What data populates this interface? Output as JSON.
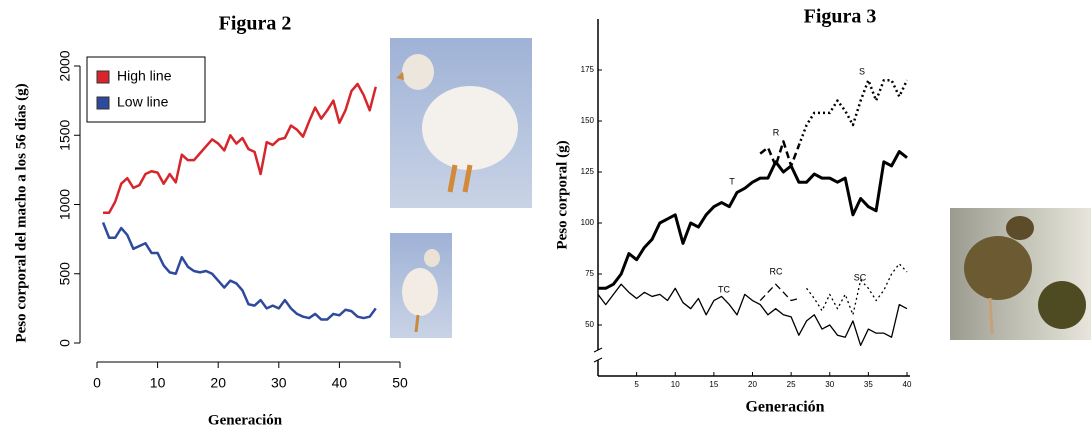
{
  "chart_data": [
    {
      "type": "line",
      "title": "Figura 2",
      "x_label": "Generación",
      "y_label": "Peso corporal del macho a los 56 días (g)",
      "x": [
        1,
        2,
        3,
        4,
        5,
        6,
        7,
        8,
        9,
        10,
        11,
        12,
        13,
        14,
        15,
        16,
        17,
        18,
        19,
        20,
        21,
        22,
        23,
        24,
        25,
        26,
        27,
        28,
        29,
        30,
        31,
        32,
        33,
        34,
        35,
        36,
        37,
        38,
        39,
        40,
        41,
        42,
        43,
        44,
        45,
        46
      ],
      "series": [
        {
          "name": "High line",
          "color": "#d7262b",
          "values": [
            940,
            940,
            1020,
            1150,
            1190,
            1120,
            1140,
            1220,
            1240,
            1230,
            1150,
            1220,
            1160,
            1360,
            1320,
            1320,
            1370,
            1420,
            1470,
            1440,
            1390,
            1500,
            1440,
            1480,
            1400,
            1380,
            1220,
            1450,
            1430,
            1470,
            1480,
            1570,
            1540,
            1490,
            1600,
            1700,
            1620,
            1680,
            1750,
            1590,
            1680,
            1820,
            1870,
            1790,
            1680,
            1850
          ]
        },
        {
          "name": "Low line",
          "color": "#2e4a9c",
          "values": [
            870,
            760,
            760,
            830,
            780,
            680,
            700,
            720,
            650,
            650,
            560,
            510,
            500,
            620,
            550,
            520,
            510,
            520,
            500,
            450,
            400,
            450,
            430,
            380,
            280,
            270,
            310,
            250,
            270,
            250,
            310,
            250,
            210,
            190,
            180,
            210,
            170,
            170,
            210,
            200,
            240,
            230,
            190,
            180,
            190,
            250
          ]
        }
      ],
      "xlim": [
        0,
        50
      ],
      "ylim": [
        0,
        2000
      ],
      "xticks": [
        0,
        10,
        20,
        30,
        40,
        50
      ],
      "yticks": [
        0,
        500,
        1000,
        1500,
        2000
      ],
      "legend": "upper left",
      "grid": false
    },
    {
      "type": "line",
      "title": "Figura 3",
      "x_label": "Generación",
      "y_label": "Peso corporal (g)",
      "series": [
        {
          "name": "T",
          "color": "#000000",
          "dash": "solid",
          "width": 3,
          "x": [
            0,
            1,
            2,
            3,
            4,
            5,
            6,
            7,
            8,
            9,
            10,
            11,
            12,
            13,
            14,
            15,
            16,
            17,
            18,
            19,
            20,
            21,
            22,
            23,
            24,
            25,
            26,
            27,
            28,
            29,
            30,
            31,
            32,
            33,
            34,
            35,
            36,
            37,
            38,
            39,
            40
          ],
          "values": [
            68,
            68,
            70,
            75,
            85,
            82,
            88,
            92,
            100,
            102,
            104,
            90,
            100,
            98,
            104,
            108,
            110,
            108,
            115,
            117,
            120,
            122,
            122,
            130,
            125,
            128,
            120,
            120,
            124,
            122,
            122,
            120,
            122,
            104,
            112,
            108,
            106,
            130,
            128,
            135,
            132
          ]
        },
        {
          "name": "R",
          "color": "#000000",
          "dash": "dashed",
          "width": 2.5,
          "x": [
            21,
            22,
            23,
            24,
            25,
            26
          ],
          "values": [
            134,
            137,
            128,
            140,
            128,
            138
          ]
        },
        {
          "name": "S",
          "color": "#000000",
          "dash": "dotted",
          "width": 2.5,
          "x": [
            26,
            27,
            28,
            29,
            30,
            31,
            32,
            33,
            34,
            35,
            36,
            37,
            38,
            39,
            40
          ],
          "values": [
            138,
            148,
            154,
            154,
            154,
            160,
            155,
            148,
            160,
            170,
            160,
            170,
            170,
            162,
            170
          ]
        },
        {
          "name": "TC",
          "color": "#000000",
          "dash": "solid",
          "width": 1.3,
          "x": [
            0,
            1,
            2,
            3,
            4,
            5,
            6,
            7,
            8,
            9,
            10,
            11,
            12,
            13,
            14,
            15,
            16,
            17,
            18,
            19,
            20,
            21,
            22,
            23,
            24,
            25,
            26,
            27,
            28,
            29,
            30,
            31,
            32,
            33,
            34,
            35,
            36,
            37,
            38,
            39,
            40
          ],
          "values": [
            65,
            60,
            65,
            70,
            66,
            63,
            66,
            64,
            65,
            62,
            68,
            61,
            58,
            63,
            55,
            62,
            64,
            60,
            55,
            65,
            62,
            60,
            55,
            58,
            55,
            54,
            45,
            52,
            55,
            48,
            50,
            45,
            44,
            52,
            40,
            48,
            46,
            46,
            44,
            60,
            58
          ]
        },
        {
          "name": "RC",
          "color": "#000000",
          "dash": "dashed",
          "width": 1.3,
          "x": [
            21,
            22,
            23,
            24,
            25,
            26
          ],
          "values": [
            62,
            66,
            70,
            66,
            62,
            63
          ]
        },
        {
          "name": "SC",
          "color": "#000000",
          "dash": "dotted",
          "width": 1.3,
          "x": [
            27,
            28,
            29,
            30,
            31,
            32,
            33,
            34,
            35,
            36,
            37,
            38,
            39,
            40
          ],
          "values": [
            68,
            63,
            57,
            65,
            58,
            65,
            55,
            72,
            68,
            62,
            67,
            75,
            80,
            76
          ]
        }
      ],
      "xlim": [
        0,
        40
      ],
      "ylim": [
        25,
        200
      ],
      "xticks": [
        5,
        10,
        15,
        20,
        25,
        30,
        35,
        40
      ],
      "yticks": [
        50,
        75,
        100,
        125,
        150,
        175
      ],
      "grid": false
    }
  ]
}
